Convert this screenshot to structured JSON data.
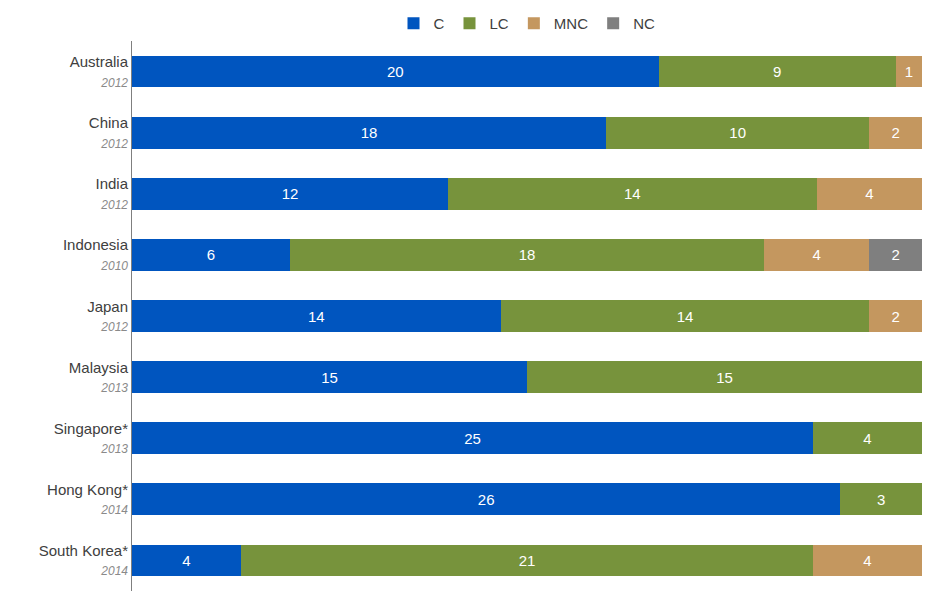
{
  "chart_data": {
    "type": "bar",
    "orientation": "horizontal",
    "stacked": true,
    "data_labels": true,
    "tick_labels": "y",
    "grid": false,
    "legend": "top",
    "categories": [
      "Australia",
      "China",
      "India",
      "Indonesia",
      "Japan",
      "Malaysia",
      "Singapore*",
      "Hong Kong*",
      "South Korea*"
    ],
    "category_years": [
      "2012",
      "2012",
      "2012",
      "2010",
      "2012",
      "2013",
      "2013",
      "2014",
      "2014"
    ],
    "series": [
      {
        "name": "C",
        "color": "#0055bf",
        "values": [
          20,
          18,
          12,
          6,
          14,
          15,
          25,
          26,
          4
        ]
      },
      {
        "name": "LC",
        "color": "#77933c",
        "values": [
          9,
          10,
          14,
          18,
          14,
          15,
          4,
          3,
          21
        ]
      },
      {
        "name": "MNC",
        "color": "#c4975f",
        "values": [
          1,
          2,
          4,
          4,
          2,
          null,
          null,
          null,
          4
        ]
      },
      {
        "name": "NC",
        "color": "#7f7f7f",
        "values": [
          null,
          null,
          null,
          2,
          null,
          null,
          null,
          null,
          null
        ]
      }
    ]
  }
}
